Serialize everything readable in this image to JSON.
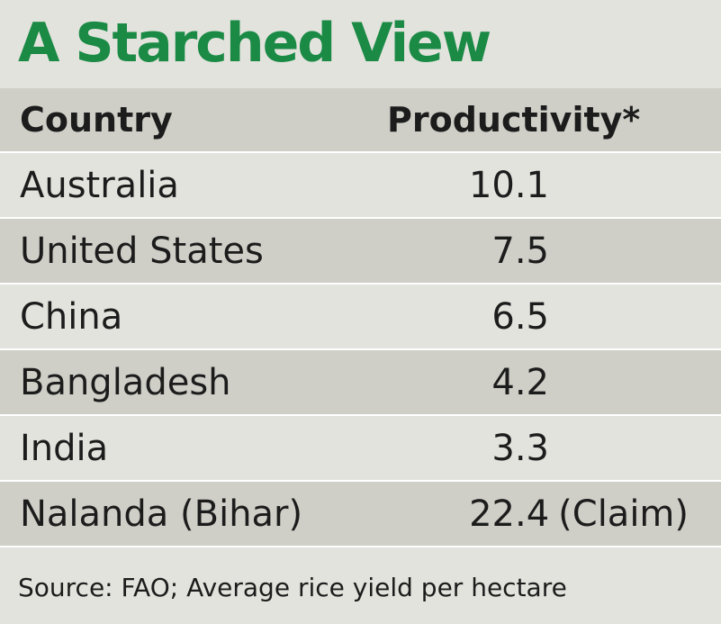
{
  "chart_data": {
    "type": "table",
    "title": "A Starched View",
    "columns": [
      "Country",
      "Productivity*"
    ],
    "rows": [
      {
        "country": "Australia",
        "value": "10.1",
        "suffix": ""
      },
      {
        "country": "United States",
        "value": "7.5",
        "suffix": ""
      },
      {
        "country": "China",
        "value": "6.5",
        "suffix": ""
      },
      {
        "country": "Bangladesh",
        "value": "4.2",
        "suffix": ""
      },
      {
        "country": "India",
        "value": "3.3",
        "suffix": ""
      },
      {
        "country": "Nalanda (Bihar)",
        "value": "22.4",
        "suffix": "(Claim)"
      }
    ],
    "note": "Source: FAO; Average rice yield per hectare"
  },
  "colors": {
    "title": "#1a8a45",
    "background": "#e3e3dd",
    "shaded_row": "#cfcfc8",
    "divider": "#ffffff"
  }
}
